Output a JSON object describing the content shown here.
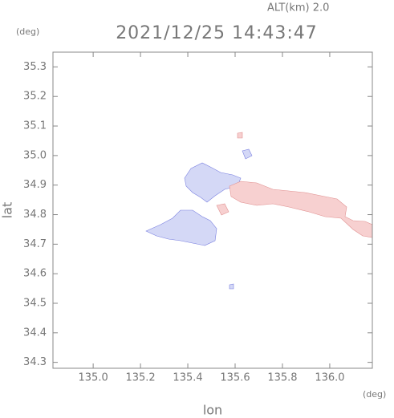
{
  "chart_data": {
    "type": "map",
    "title": "2021/12/25 14:43:47",
    "subtitle": "ALT(km) 2.0",
    "y_unit": "(deg)",
    "x_unit": "(deg)",
    "xlabel": "lon",
    "ylabel": "lat",
    "xlim": [
      134.83,
      136.18
    ],
    "ylim": [
      34.28,
      35.35
    ],
    "xticks": [
      {
        "value": 135,
        "label": "135.0"
      },
      135.2,
      135.4,
      135.6,
      135.8,
      {
        "value": 136,
        "label": "136.0"
      }
    ],
    "yticks": [
      34.3,
      34.4,
      34.5,
      34.6,
      34.7,
      34.8,
      34.9,
      {
        "value": 35,
        "label": "35.0"
      },
      35.1,
      35.2,
      35.3
    ]
  }
}
